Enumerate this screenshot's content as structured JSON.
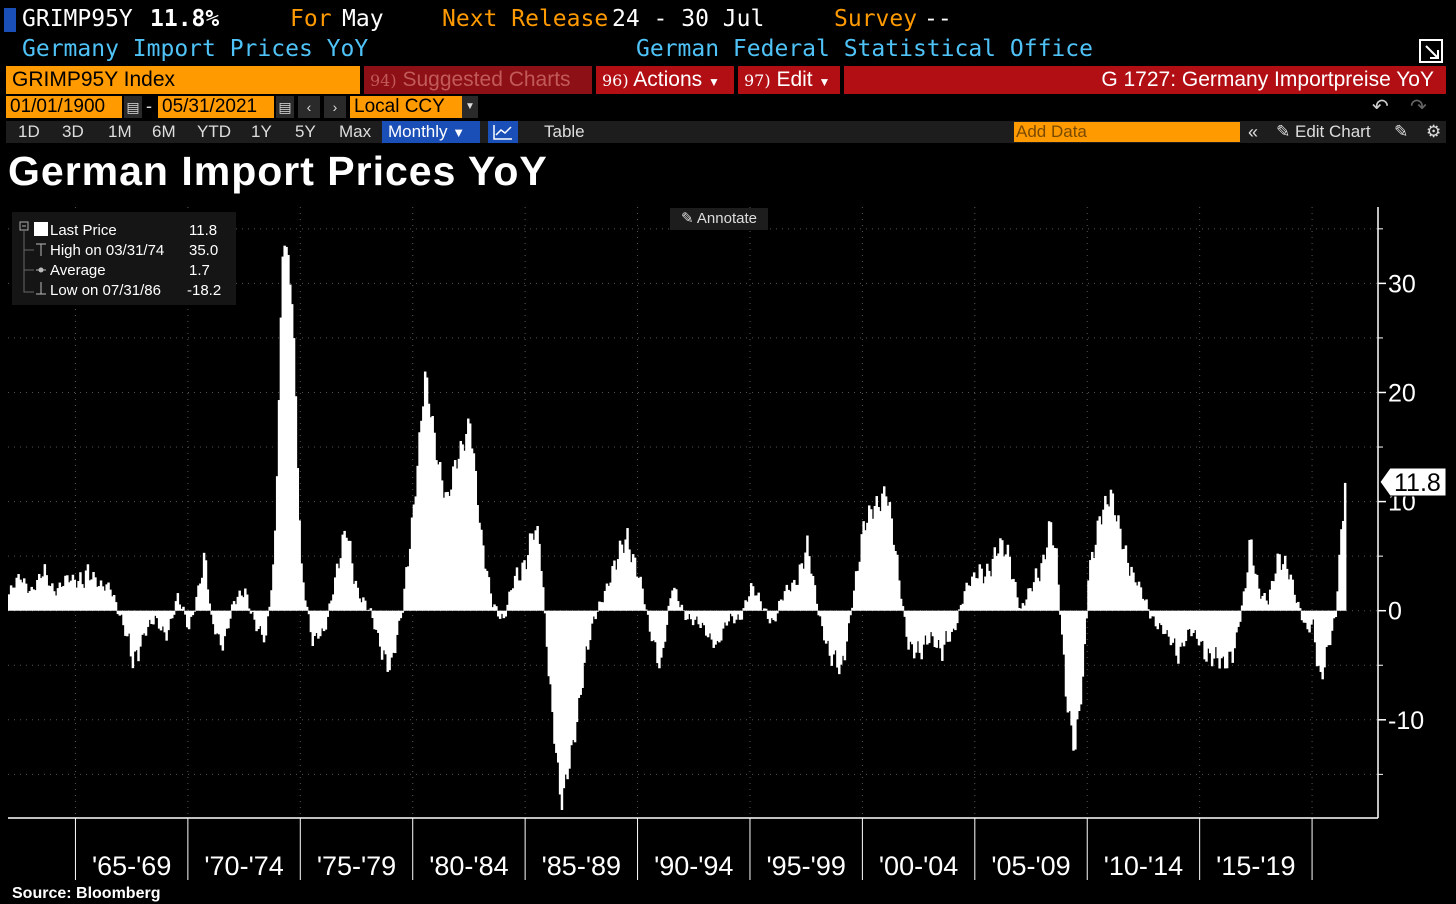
{
  "header": {
    "ticker": "GRIMP95Y",
    "last_value": "11.8%",
    "for_label": "For",
    "for_value": "May",
    "next_release_label": "Next Release",
    "next_release_value": "24 - 30 Jul",
    "survey_label": "Survey",
    "survey_value": "--",
    "series_name": "Germany Import Prices YoY",
    "source_org": "German Federal Statistical Office"
  },
  "toolbar": {
    "security": "GRIMP95Y Index",
    "suggested_num": "94)",
    "suggested": "Suggested Charts",
    "actions_num": "96)",
    "actions": "Actions",
    "edit_num": "97)",
    "edit": "Edit",
    "chart_title": "G 1727: Germany Importpreise YoY",
    "start_date": "01/01/1900",
    "end_date": "05/31/2021",
    "currency": "Local CCY",
    "ranges": [
      "1D",
      "3D",
      "1M",
      "6M",
      "YTD",
      "1Y",
      "5Y",
      "Max"
    ],
    "frequency": "Monthly",
    "table_label": "Table",
    "add_data_placeholder": "Add Data",
    "edit_chart": "Edit Chart"
  },
  "legend": {
    "last_label": "Last Price",
    "last_value": "11.8",
    "high_label": "High on 03/31/74",
    "high_value": "35.0",
    "avg_label": "Average",
    "avg_value": "1.7",
    "low_label": "Low on 07/31/86",
    "low_value": "-18.2"
  },
  "annotate_label": "Annotate",
  "source": "Source: Bloomberg",
  "colors": {
    "bars": "#ffffff",
    "accent": "#ff9a00",
    "red": "#b10f14",
    "cyan": "#4fc3f7"
  },
  "chart_data": {
    "type": "bar",
    "title": "German Import Prices YoY",
    "ylim": [
      -19,
      37
    ],
    "yticks": [
      -10,
      0,
      10,
      20,
      30
    ],
    "last_value_label": "11.8",
    "x_range": [
      1962.0,
      2021.42
    ],
    "x_tick_years": [
      1965,
      1970,
      1975,
      1980,
      1985,
      1990,
      1995,
      2000,
      2005,
      2010,
      2015,
      2020
    ],
    "xtick_labels": [
      "'65-'69",
      "'70-'74",
      "'75-'79",
      "'80-'84",
      "'85-'89",
      "'90-'94",
      "'95-'99",
      "'00-'04",
      "'05-'09",
      "'10-'14",
      "'15-'19"
    ],
    "anchors": [
      [
        1962.0,
        1.5
      ],
      [
        1962.5,
        3.0
      ],
      [
        1963.0,
        2.0
      ],
      [
        1963.5,
        3.2
      ],
      [
        1964.0,
        2.0
      ],
      [
        1964.5,
        2.8
      ],
      [
        1965.0,
        2.5
      ],
      [
        1965.5,
        4.0
      ],
      [
        1966.0,
        2.0
      ],
      [
        1966.5,
        2.5
      ],
      [
        1967.0,
        -1.0
      ],
      [
        1967.5,
        -4.5
      ],
      [
        1968.0,
        -2.0
      ],
      [
        1968.5,
        -1.0
      ],
      [
        1969.0,
        -2.0
      ],
      [
        1969.5,
        1.0
      ],
      [
        1970.0,
        -1.5
      ],
      [
        1970.7,
        4.5
      ],
      [
        1971.0,
        -1.0
      ],
      [
        1971.5,
        -3.0
      ],
      [
        1972.0,
        0.5
      ],
      [
        1972.5,
        2.0
      ],
      [
        1973.0,
        -1.5
      ],
      [
        1973.4,
        -3.0
      ],
      [
        1973.8,
        5.0
      ],
      [
        1974.2,
        35.0
      ],
      [
        1974.6,
        28.0
      ],
      [
        1975.0,
        4.0
      ],
      [
        1975.5,
        -3.0
      ],
      [
        1976.0,
        -2.0
      ],
      [
        1976.5,
        3.0
      ],
      [
        1977.0,
        7.0
      ],
      [
        1977.5,
        2.0
      ],
      [
        1978.0,
        0.0
      ],
      [
        1978.5,
        -3.0
      ],
      [
        1979.0,
        -5.0
      ],
      [
        1979.5,
        0.0
      ],
      [
        1980.0,
        10.0
      ],
      [
        1980.5,
        21.0
      ],
      [
        1981.0,
        15.0
      ],
      [
        1981.5,
        10.0
      ],
      [
        1982.0,
        14.0
      ],
      [
        1982.5,
        18.0
      ],
      [
        1983.0,
        6.0
      ],
      [
        1983.5,
        1.0
      ],
      [
        1984.0,
        -1.0
      ],
      [
        1984.5,
        3.0
      ],
      [
        1985.0,
        5.0
      ],
      [
        1985.3,
        7.0
      ],
      [
        1985.6,
        6.0
      ],
      [
        1986.0,
        -5.0
      ],
      [
        1986.5,
        -17.0
      ],
      [
        1986.6,
        -18.2
      ],
      [
        1987.0,
        -13.0
      ],
      [
        1987.5,
        -6.0
      ],
      [
        1988.0,
        -1.0
      ],
      [
        1988.5,
        2.0
      ],
      [
        1989.0,
        4.0
      ],
      [
        1989.5,
        7.0
      ],
      [
        1990.0,
        3.5
      ],
      [
        1990.5,
        -2.0
      ],
      [
        1991.0,
        -4.5
      ],
      [
        1991.5,
        2.0
      ],
      [
        1992.0,
        0.0
      ],
      [
        1992.5,
        -1.0
      ],
      [
        1993.0,
        -2.0
      ],
      [
        1993.5,
        -3.0
      ],
      [
        1994.0,
        -1.0
      ],
      [
        1994.5,
        -0.5
      ],
      [
        1995.0,
        2.0
      ],
      [
        1995.5,
        0.5
      ],
      [
        1996.0,
        -1.0
      ],
      [
        1996.5,
        1.5
      ],
      [
        1997.0,
        3.0
      ],
      [
        1997.5,
        5.5
      ],
      [
        1998.0,
        0.0
      ],
      [
        1998.5,
        -4.0
      ],
      [
        1999.0,
        -6.0
      ],
      [
        1999.5,
        1.0
      ],
      [
        2000.0,
        7.0
      ],
      [
        2000.5,
        10.0
      ],
      [
        2001.0,
        11.0
      ],
      [
        2001.5,
        4.0
      ],
      [
        2002.0,
        -3.0
      ],
      [
        2002.5,
        -4.5
      ],
      [
        2003.0,
        -2.0
      ],
      [
        2003.5,
        -4.0
      ],
      [
        2004.0,
        -2.0
      ],
      [
        2004.5,
        2.0
      ],
      [
        2005.0,
        3.0
      ],
      [
        2005.5,
        4.0
      ],
      [
        2006.0,
        5.5
      ],
      [
        2006.5,
        5.0
      ],
      [
        2007.0,
        0.0
      ],
      [
        2007.5,
        2.0
      ],
      [
        2008.0,
        5.0
      ],
      [
        2008.3,
        8.0
      ],
      [
        2008.6,
        4.0
      ],
      [
        2009.0,
        -7.0
      ],
      [
        2009.4,
        -12.5
      ],
      [
        2009.8,
        -6.0
      ],
      [
        2010.0,
        3.0
      ],
      [
        2010.5,
        9.0
      ],
      [
        2011.0,
        10.0
      ],
      [
        2011.5,
        7.0
      ],
      [
        2012.0,
        3.0
      ],
      [
        2012.5,
        1.0
      ],
      [
        2013.0,
        -1.0
      ],
      [
        2013.5,
        -2.5
      ],
      [
        2014.0,
        -3.5
      ],
      [
        2014.5,
        -2.0
      ],
      [
        2015.0,
        -3.0
      ],
      [
        2015.5,
        -4.0
      ],
      [
        2016.0,
        -5.5
      ],
      [
        2016.5,
        -3.0
      ],
      [
        2017.0,
        2.0
      ],
      [
        2017.2,
        6.0
      ],
      [
        2017.6,
        2.0
      ],
      [
        2018.0,
        1.0
      ],
      [
        2018.5,
        4.5
      ],
      [
        2018.9,
        4.5
      ],
      [
        2019.3,
        0.5
      ],
      [
        2019.7,
        -2.0
      ],
      [
        2020.0,
        -1.0
      ],
      [
        2020.3,
        -6.0
      ],
      [
        2020.6,
        -4.5
      ],
      [
        2021.0,
        -0.5
      ],
      [
        2021.2,
        6.0
      ],
      [
        2021.42,
        11.8
      ]
    ]
  }
}
